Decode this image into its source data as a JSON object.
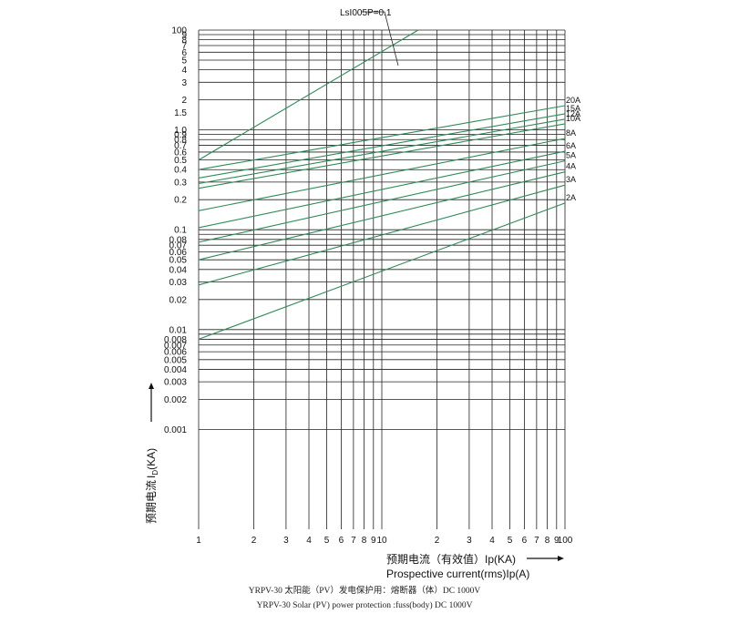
{
  "chart_data": {
    "type": "line",
    "x_scale": "log",
    "y_scale": "log",
    "xlim": [
      1,
      100
    ],
    "ylim": [
      0.001,
      100
    ],
    "grid": true,
    "line_color": "#2e8b57",
    "grid_color": "#222222",
    "x_tick_labels": [
      {
        "v": 1,
        "t": "1"
      },
      {
        "v": 2,
        "t": "2"
      },
      {
        "v": 3,
        "t": "3"
      },
      {
        "v": 4,
        "t": "4"
      },
      {
        "v": 5,
        "t": "5"
      },
      {
        "v": 6,
        "t": "6"
      },
      {
        "v": 7,
        "t": "7"
      },
      {
        "v": 8,
        "t": "8"
      },
      {
        "v": 9,
        "t": "9"
      },
      {
        "v": 10,
        "t": "10"
      },
      {
        "v": 20,
        "t": "2"
      },
      {
        "v": 30,
        "t": "3"
      },
      {
        "v": 40,
        "t": "4"
      },
      {
        "v": 50,
        "t": "5"
      },
      {
        "v": 60,
        "t": "6"
      },
      {
        "v": 70,
        "t": "7"
      },
      {
        "v": 80,
        "t": "8"
      },
      {
        "v": 90,
        "t": "9"
      },
      {
        "v": 100,
        "t": "100"
      }
    ],
    "y_tick_labels": [
      {
        "v": 100,
        "t": "100"
      },
      {
        "v": 90,
        "t": "9"
      },
      {
        "v": 80,
        "t": "8"
      },
      {
        "v": 70,
        "t": "7"
      },
      {
        "v": 60,
        "t": "6"
      },
      {
        "v": 50,
        "t": "5"
      },
      {
        "v": 40,
        "t": "4"
      },
      {
        "v": 30,
        "t": "3"
      },
      {
        "v": 20,
        "t": "2"
      },
      {
        "v": 15,
        "t": "1.5"
      },
      {
        "v": 10,
        "t": "1.0"
      },
      {
        "v": 9,
        "t": "0.9"
      },
      {
        "v": 8,
        "t": "0.8"
      },
      {
        "v": 7,
        "t": "0.7"
      },
      {
        "v": 6,
        "t": "0.6"
      },
      {
        "v": 5,
        "t": "0.5"
      },
      {
        "v": 4,
        "t": "0.4"
      },
      {
        "v": 3,
        "t": "0.3"
      },
      {
        "v": 2,
        "t": "0.2"
      },
      {
        "v": 1,
        "t": "0.1"
      },
      {
        "v": 0.8,
        "t": "0.08"
      },
      {
        "v": 0.7,
        "t": "0.07"
      },
      {
        "v": 0.6,
        "t": "0.06"
      },
      {
        "v": 0.5,
        "t": "0.05"
      },
      {
        "v": 0.4,
        "t": "0.04"
      },
      {
        "v": 0.3,
        "t": "0.03"
      },
      {
        "v": 0.2,
        "t": "0.02"
      },
      {
        "v": 0.1,
        "t": "0.01"
      },
      {
        "v": 0.08,
        "t": "0.008"
      },
      {
        "v": 0.07,
        "t": "0.007"
      },
      {
        "v": 0.06,
        "t": "0.006"
      },
      {
        "v": 0.05,
        "t": "0.005"
      },
      {
        "v": 0.04,
        "t": "0.004"
      },
      {
        "v": 0.03,
        "t": "0.003"
      },
      {
        "v": 0.02,
        "t": "0.002"
      },
      {
        "v": 0.01,
        "t": "0.001"
      }
    ],
    "series": [
      {
        "name": "LsI005P=0.1",
        "x": [
          1,
          15.8
        ],
        "y": [
          5,
          100
        ]
      },
      {
        "name": "20A",
        "x": [
          1,
          100
        ],
        "y": [
          4,
          17.5
        ]
      },
      {
        "name": "15A",
        "x": [
          1,
          100
        ],
        "y": [
          3.3,
          14.5
        ]
      },
      {
        "name": "12A",
        "x": [
          1,
          100
        ],
        "y": [
          2.9,
          12.8
        ]
      },
      {
        "name": "10A",
        "x": [
          1,
          100
        ],
        "y": [
          2.6,
          11.5
        ]
      },
      {
        "name": "8A",
        "x": [
          1,
          100
        ],
        "y": [
          1.55,
          8.2
        ]
      },
      {
        "name": "6A",
        "x": [
          1,
          100
        ],
        "y": [
          1.05,
          6.1
        ]
      },
      {
        "name": "5A",
        "x": [
          1,
          100
        ],
        "y": [
          0.75,
          4.9
        ]
      },
      {
        "name": "4A",
        "x": [
          1,
          100
        ],
        "y": [
          0.5,
          3.8
        ]
      },
      {
        "name": "3A",
        "x": [
          1,
          100
        ],
        "y": [
          0.28,
          2.8
        ]
      },
      {
        "name": "2A",
        "x": [
          1,
          100
        ],
        "y": [
          0.08,
          1.85
        ]
      }
    ],
    "xlabel_cn": "预期电流（有效值）Ip(KA)",
    "xlabel_en": "Prospective current(rms)Ip(A)",
    "ylabel_cn": "预期电流",
    "ylabel_en": "I",
    "ylabel_sub": "D",
    "ylabel_unit": "(KA)",
    "annotation": "LsI005P=0.1"
  },
  "caption_cn": "YRPV-30 太阳能（PV）发电保护用：熔断器（体）DC 1000V",
  "caption_en": "YRPV-30 Solar  (PV) power protection :fuss(body) DC 1000V"
}
